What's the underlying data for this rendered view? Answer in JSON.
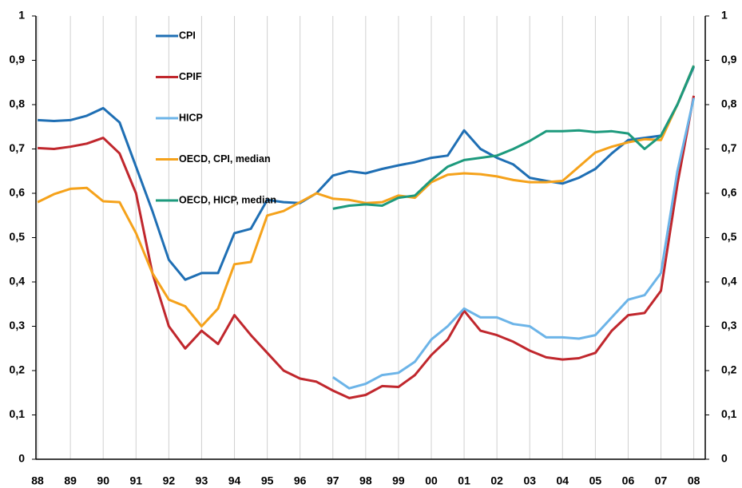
{
  "chart_data": {
    "type": "line",
    "x": [
      1988,
      1988.5,
      1989,
      1989.5,
      1990,
      1990.5,
      1991,
      1991.5,
      1992,
      1992.5,
      1993,
      1993.5,
      1994,
      1994.5,
      1995,
      1995.5,
      1996,
      1996.5,
      1997,
      1997.5,
      1998,
      1998.5,
      1999,
      1999.5,
      2000,
      2000.5,
      2001,
      2001.5,
      2002,
      2002.5,
      2003,
      2003.5,
      2004,
      2004.5,
      2005,
      2005.5,
      2006,
      2006.5,
      2007,
      2007.5,
      2008
    ],
    "series": [
      {
        "name": "CPI",
        "color": "#1f6fb4",
        "values": [
          0.765,
          0.763,
          0.765,
          0.775,
          0.792,
          0.76,
          0.66,
          0.56,
          0.45,
          0.405,
          0.42,
          0.42,
          0.51,
          0.52,
          0.585,
          0.58,
          0.578,
          0.6,
          0.64,
          0.65,
          0.645,
          0.655,
          0.663,
          0.67,
          0.68,
          0.685,
          0.742,
          0.7,
          0.68,
          0.665,
          0.635,
          0.628,
          0.622,
          0.635,
          0.655,
          0.69,
          0.72,
          0.725,
          0.73,
          0.8,
          0.885
        ]
      },
      {
        "name": "CPIF",
        "color": "#c0272d",
        "values": [
          0.702,
          0.7,
          0.705,
          0.712,
          0.725,
          0.69,
          0.6,
          0.42,
          0.3,
          0.25,
          0.29,
          0.26,
          0.325,
          0.28,
          0.24,
          0.2,
          0.182,
          0.175,
          0.155,
          0.138,
          0.145,
          0.165,
          0.163,
          0.19,
          0.235,
          0.27,
          0.335,
          0.29,
          0.28,
          0.265,
          0.245,
          0.23,
          0.225,
          0.228,
          0.24,
          0.29,
          0.325,
          0.33,
          0.38,
          0.62,
          0.82
        ]
      },
      {
        "name": "HICP",
        "color": "#6cb4e8",
        "values": [
          null,
          null,
          null,
          null,
          null,
          null,
          null,
          null,
          null,
          null,
          null,
          null,
          null,
          null,
          null,
          null,
          null,
          null,
          0.185,
          0.16,
          0.17,
          0.19,
          0.195,
          0.22,
          0.27,
          0.3,
          0.34,
          0.32,
          0.32,
          0.305,
          0.3,
          0.275,
          0.275,
          0.272,
          0.28,
          0.32,
          0.36,
          0.37,
          0.42,
          0.65,
          0.815
        ]
      },
      {
        "name": "OECD, CPI, median",
        "color": "#f5a21b",
        "values": [
          0.58,
          0.598,
          0.61,
          0.612,
          0.582,
          0.58,
          0.51,
          0.42,
          0.36,
          0.345,
          0.3,
          0.34,
          0.44,
          0.445,
          0.55,
          0.56,
          0.58,
          0.6,
          0.588,
          0.585,
          0.578,
          0.58,
          0.595,
          0.59,
          0.625,
          0.642,
          0.645,
          0.643,
          0.638,
          0.63,
          0.625,
          0.625,
          0.628,
          0.66,
          0.692,
          0.705,
          0.715,
          0.722,
          0.72,
          0.8,
          0.888
        ]
      },
      {
        "name": "OECD, HICP, median",
        "color": "#1d9a7d",
        "values": [
          null,
          null,
          null,
          null,
          null,
          null,
          null,
          null,
          null,
          null,
          null,
          null,
          null,
          null,
          null,
          null,
          null,
          null,
          0.565,
          0.572,
          0.575,
          0.572,
          0.59,
          0.595,
          0.63,
          0.66,
          0.675,
          0.68,
          0.685,
          0.7,
          0.718,
          0.74,
          0.74,
          0.742,
          0.738,
          0.74,
          0.735,
          0.7,
          0.73,
          0.8,
          0.888
        ]
      }
    ],
    "xlim": [
      1987.95,
      2008.35
    ],
    "xticks": [
      {
        "value": 1988,
        "label": "88"
      },
      {
        "value": 1989,
        "label": "89"
      },
      {
        "value": 1990,
        "label": "90"
      },
      {
        "value": 1991,
        "label": "91"
      },
      {
        "value": 1992,
        "label": "92"
      },
      {
        "value": 1993,
        "label": "93"
      },
      {
        "value": 1994,
        "label": "94"
      },
      {
        "value": 1995,
        "label": "95"
      },
      {
        "value": 1996,
        "label": "96"
      },
      {
        "value": 1997,
        "label": "97"
      },
      {
        "value": 1998,
        "label": "98"
      },
      {
        "value": 1999,
        "label": "99"
      },
      {
        "value": 2000,
        "label": "00"
      },
      {
        "value": 2001,
        "label": "01"
      },
      {
        "value": 2002,
        "label": "02"
      },
      {
        "value": 2003,
        "label": "03"
      },
      {
        "value": 2004,
        "label": "04"
      },
      {
        "value": 2005,
        "label": "05"
      },
      {
        "value": 2006,
        "label": "06"
      },
      {
        "value": 2007,
        "label": "07"
      },
      {
        "value": 2008,
        "label": "08"
      }
    ],
    "ylim": [
      0,
      1
    ],
    "yticks": [
      0,
      {
        "value": 0.1,
        "label": "0,1"
      },
      {
        "value": 0.2,
        "label": "0,2"
      },
      {
        "value": 0.3,
        "label": "0,3"
      },
      {
        "value": 0.4,
        "label": "0,4"
      },
      {
        "value": 0.5,
        "label": "0,5"
      },
      {
        "value": 0.6,
        "label": "0,6"
      },
      {
        "value": 0.7,
        "label": "0,7"
      },
      {
        "value": 0.8,
        "label": "0,8"
      },
      {
        "value": 0.9,
        "label": "0,9"
      },
      1
    ],
    "y2lim": [
      0,
      1
    ],
    "y2ticks": [
      0,
      {
        "value": 0.1,
        "label": "0,1"
      },
      {
        "value": 0.2,
        "label": "0,2"
      },
      {
        "value": 0.3,
        "label": "0,3"
      },
      {
        "value": 0.4,
        "label": "0,4"
      },
      {
        "value": 0.5,
        "label": "0,5"
      },
      {
        "value": 0.6,
        "label": "0,6"
      },
      {
        "value": 0.7,
        "label": "0,7"
      },
      {
        "value": 0.8,
        "label": "0,8"
      },
      {
        "value": 0.9,
        "label": "0,9"
      },
      1
    ],
    "grid": true,
    "legend": "upper left"
  }
}
